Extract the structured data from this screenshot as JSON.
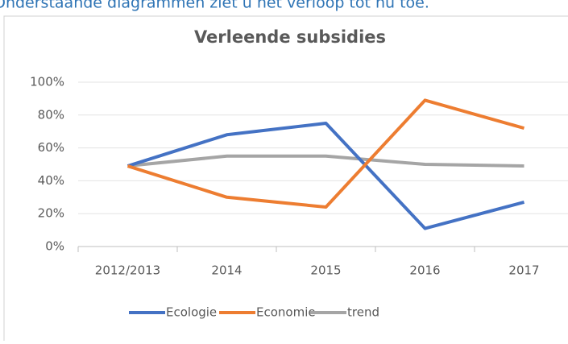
{
  "intro": "Onderstaande diagrammen ziet u het verloop tot nu toe.",
  "chart_data": {
    "type": "line",
    "title": "Verleende subsidies",
    "categories": [
      "2012/2013",
      "2014",
      "2015",
      "2016",
      "2017"
    ],
    "series": [
      {
        "name": "Ecologie",
        "color": "#4472c4",
        "values": [
          49,
          68,
          75,
          11,
          27
        ]
      },
      {
        "name": "Economie",
        "color": "#ed7d31",
        "values": [
          49,
          30,
          24,
          89,
          72
        ]
      },
      {
        "name": "trend",
        "color": "#a5a5a5",
        "values": [
          49,
          55,
          55,
          50,
          49
        ]
      }
    ],
    "ylim": [
      0,
      100
    ],
    "yticks": [
      {
        "value": 0,
        "label": "0%"
      },
      {
        "value": 20,
        "label": "20%"
      },
      {
        "value": 40,
        "label": "40%"
      },
      {
        "value": 60,
        "label": "60%"
      },
      {
        "value": 80,
        "label": "80%"
      },
      {
        "value": 100,
        "label": "100%"
      }
    ],
    "grid": true,
    "legend": "bottom"
  }
}
